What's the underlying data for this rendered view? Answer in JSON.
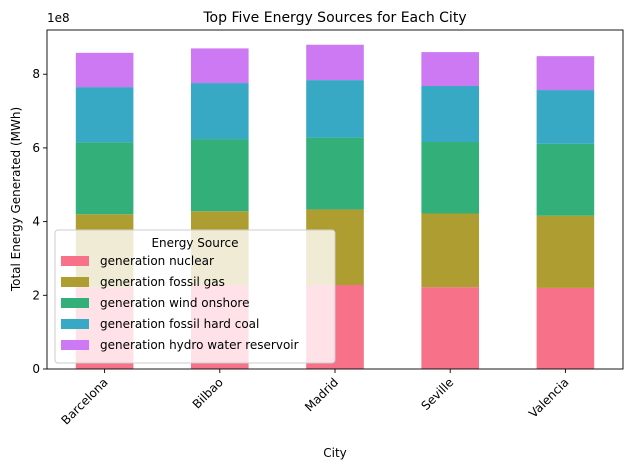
{
  "chart_data": {
    "type": "bar",
    "stacked": true,
    "title": "Top Five Energy Sources for Each City",
    "xlabel": "City",
    "ylabel": "Total Energy Generated (MWh)",
    "y_offset_label": "1e8",
    "categories": [
      "Barcelona",
      "Bilbao",
      "Madrid",
      "Seville",
      "Valencia"
    ],
    "ylim": [
      0,
      9.2
    ],
    "yticks": [
      0,
      2,
      4,
      6,
      8
    ],
    "legend": {
      "title": "Energy Source",
      "placement": "lower-left"
    },
    "series": [
      {
        "name": "generation nuclear",
        "color": "#f77189",
        "values": [
          2.22,
          2.28,
          2.28,
          2.22,
          2.2
        ]
      },
      {
        "name": "generation fossil gas",
        "color": "#ae9d31",
        "values": [
          1.98,
          2.0,
          2.05,
          2.0,
          1.96
        ]
      },
      {
        "name": "generation wind onshore",
        "color": "#33b07a",
        "values": [
          1.95,
          1.96,
          1.95,
          1.94,
          1.95
        ]
      },
      {
        "name": "generation fossil hard coal",
        "color": "#38a9c5",
        "values": [
          1.5,
          1.52,
          1.56,
          1.52,
          1.46
        ]
      },
      {
        "name": "generation hydro water reservoir",
        "color": "#cc79f3",
        "values": [
          0.93,
          0.94,
          0.96,
          0.92,
          0.92
        ]
      }
    ]
  }
}
